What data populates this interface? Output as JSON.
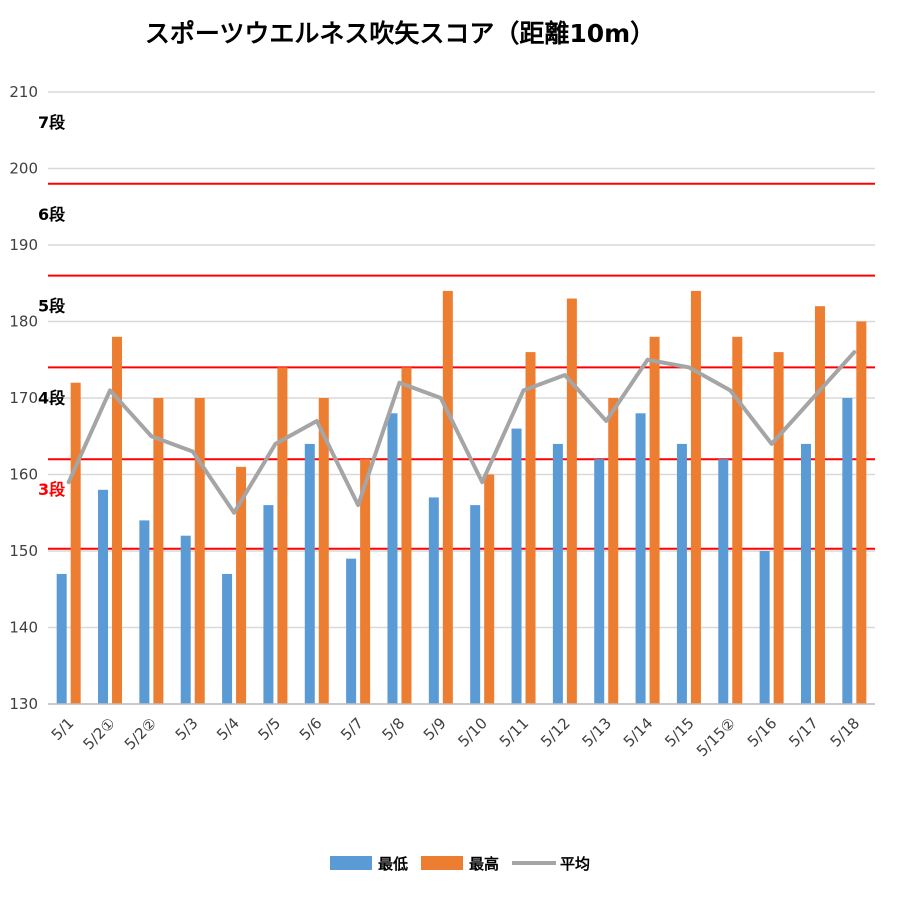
{
  "chart_data": {
    "type": "bar",
    "title": "スポーツウエルネス吹矢スコア（距離10m）",
    "categories": [
      "5/1",
      "5/2①",
      "5/2②",
      "5/3",
      "5/4",
      "5/5",
      "5/6",
      "5/7",
      "5/8",
      "5/9",
      "5/10",
      "5/11",
      "5/12",
      "5/13",
      "5/14",
      "5/15",
      "5/15②",
      "5/16",
      "5/17",
      "5/18"
    ],
    "series": [
      {
        "name": "最低",
        "type": "bar",
        "color": "#5b9bd5",
        "values": [
          147,
          158,
          154,
          152,
          147,
          156,
          164,
          149,
          168,
          157,
          156,
          166,
          164,
          162,
          168,
          164,
          162,
          150,
          164,
          170
        ]
      },
      {
        "name": "最高",
        "type": "bar",
        "color": "#ed7d31",
        "values": [
          172,
          178,
          170,
          170,
          161,
          174,
          170,
          162,
          174,
          184,
          160,
          176,
          183,
          170,
          178,
          184,
          178,
          176,
          182,
          180
        ]
      },
      {
        "name": "平均",
        "type": "line",
        "color": "#a5a5a5",
        "values": [
          159,
          171,
          165,
          163,
          155,
          164,
          167,
          156,
          172,
          170,
          159,
          171,
          173,
          167,
          175,
          174,
          171,
          164,
          170,
          176
        ]
      }
    ],
    "yticks": [
      130,
      140,
      150,
      160,
      170,
      180,
      190,
      200,
      210
    ],
    "ylim": [
      130,
      210
    ],
    "grid": true,
    "legend": "bottom",
    "reference_lines": [
      {
        "label": "7段",
        "value": 210,
        "label_color": "#000000",
        "show_line": false
      },
      {
        "label": "6段",
        "value": 198,
        "label_color": "#000000",
        "show_line": true
      },
      {
        "label": "5段",
        "value": 186,
        "label_color": "#000000",
        "show_line": true
      },
      {
        "label": "4段",
        "value": 174,
        "label_color": "#000000",
        "show_line": true
      },
      {
        "label": "3段",
        "value": 162,
        "label_color": "#ff0000",
        "show_line": true
      },
      {
        "label": "",
        "value": 150.3,
        "label_color": "#ff0000",
        "show_line": true
      }
    ],
    "reference_line_color": "#ff0000",
    "grid_color": "#d9d9d9"
  }
}
